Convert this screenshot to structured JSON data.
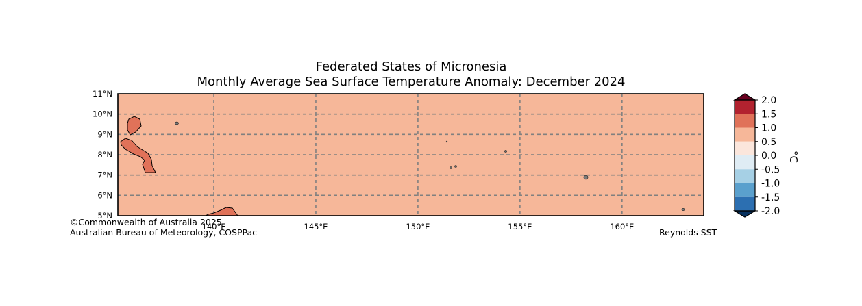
{
  "title_line1": "Federated States of Micronesia",
  "title_line2": "Monthly Average Sea Surface Temperature Anomaly: December 2024",
  "lat_labels": [
    "11°N",
    "10°N",
    "9°N",
    "8°N",
    "7°N",
    "6°N",
    "5°N"
  ],
  "lon_labels": [
    "140°E",
    "145°E",
    "150°E",
    "155°E",
    "160°E"
  ],
  "anomaly_field_value": 0.75,
  "colors": {
    "ocean_fill": "#f6b799",
    "warm_feature": "#e07259",
    "gridline": "#808080",
    "frame": "#000000"
  },
  "colorbar": {
    "unit": "°C",
    "tick_labels": [
      "2.0",
      "1.5",
      "1.0",
      "0.5",
      "0.0",
      "-0.5",
      "-1.0",
      "-1.5",
      "-2.0"
    ],
    "bins": [
      {
        "range": [
          1.5,
          2.0
        ],
        "color": "#b2222f"
      },
      {
        "range": [
          1.0,
          1.5
        ],
        "color": "#e07259"
      },
      {
        "range": [
          0.5,
          1.0
        ],
        "color": "#f6b799"
      },
      {
        "range": [
          0.0,
          0.5
        ],
        "color": "#fbe6dc"
      },
      {
        "range": [
          -0.5,
          0.0
        ],
        "color": "#dfecf4"
      },
      {
        "range": [
          -1.0,
          -0.5
        ],
        "color": "#a6d0e5"
      },
      {
        "range": [
          -1.5,
          -1.0
        ],
        "color": "#5aa0cd"
      },
      {
        "range": [
          -2.0,
          -1.5
        ],
        "color": "#2c6fb1"
      }
    ],
    "over_color": "#68001f",
    "under_color": "#06305e"
  },
  "credits": {
    "left_line1": "©Commonwealth of Australia 2025",
    "left_line2": "Australian Bureau of Meteorology, COSPPac",
    "right": "Reynolds SST"
  }
}
